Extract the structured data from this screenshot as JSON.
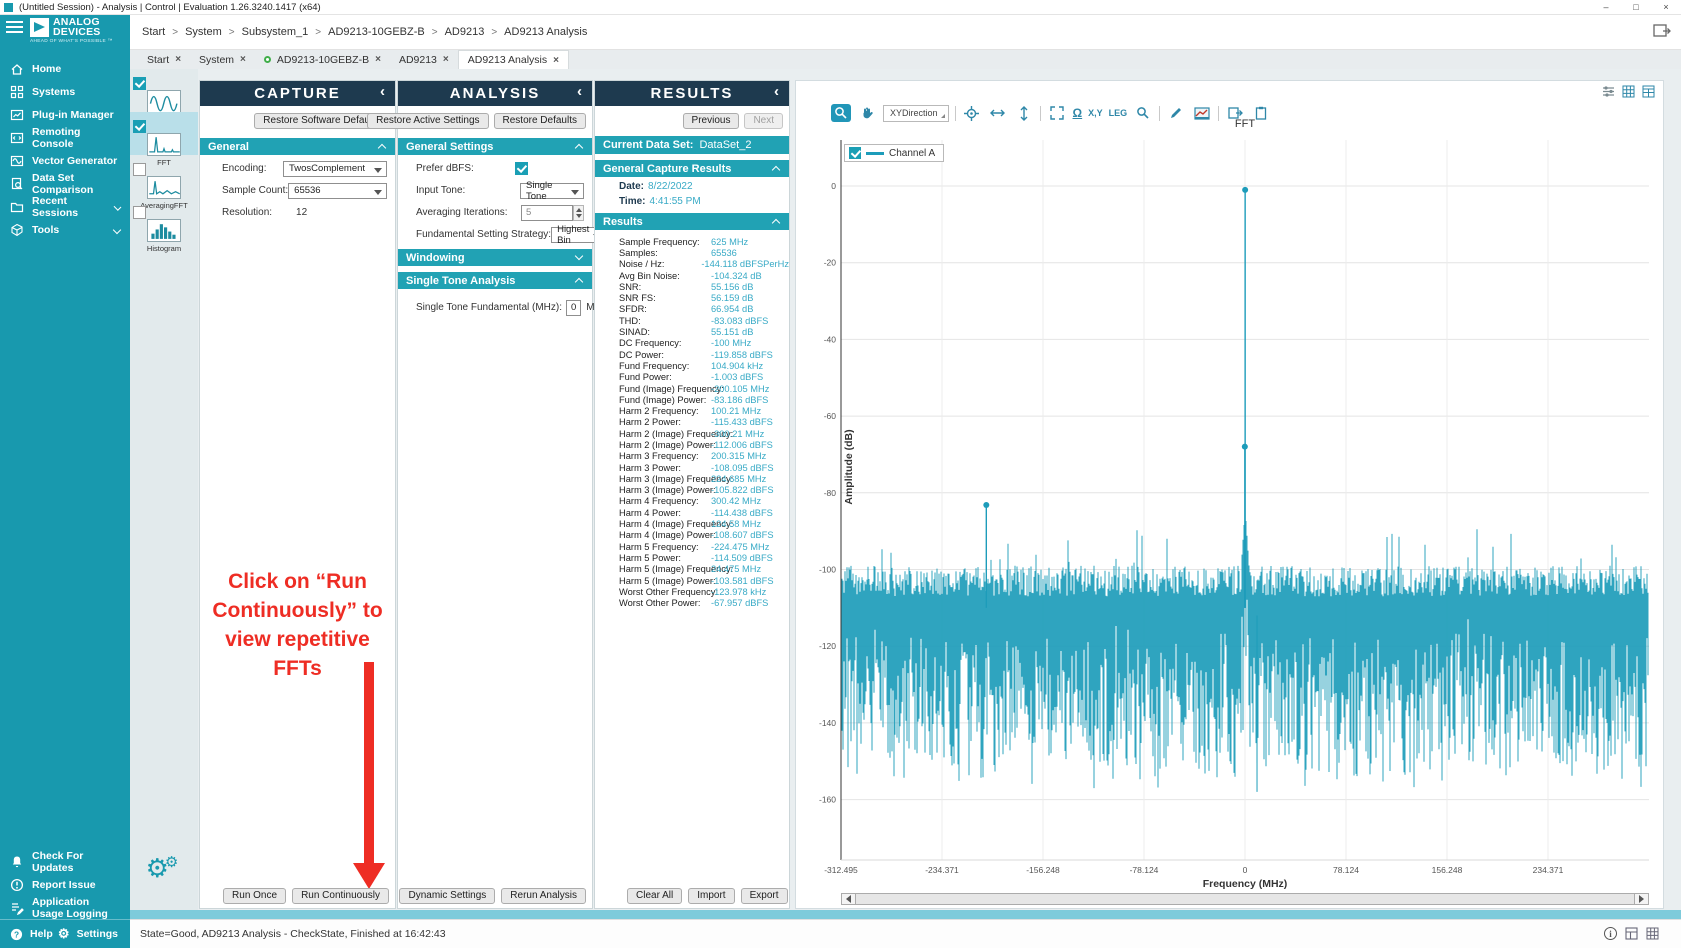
{
  "window_title": "(Untitled Session) - Analysis | Control | Evaluation 1.26.3240.1417  (x64)",
  "window_controls": {
    "minimize": "–",
    "maximize": "□",
    "close": "×"
  },
  "logo": {
    "name_top": "ANALOG",
    "name_bottom": "DEVICES",
    "tagline": "AHEAD OF WHAT'S POSSIBLE ™"
  },
  "breadcrumb": {
    "separator": ">",
    "items": [
      "Start",
      "System",
      "Subsystem_1",
      "AD9213-10GEBZ-B",
      "AD9213",
      "AD9213 Analysis"
    ]
  },
  "close_glyph": "×",
  "tabs": [
    {
      "label": "Start"
    },
    {
      "label": "System"
    },
    {
      "label": "AD9213-10GEBZ-B",
      "dot": true
    },
    {
      "label": "AD9213"
    },
    {
      "label": "AD9213 Analysis",
      "active": true
    }
  ],
  "sidebar": {
    "items": [
      {
        "label": "Home"
      },
      {
        "label": "Systems"
      },
      {
        "label": "Plug-in Manager"
      },
      {
        "label": "Remoting Console"
      },
      {
        "label": "Vector Generator"
      },
      {
        "label": "Data Set Comparison"
      },
      {
        "label": "Recent Sessions",
        "chevron": true
      },
      {
        "label": "Tools",
        "chevron": true
      }
    ],
    "footer": [
      {
        "label": "Check For Updates"
      },
      {
        "label": "Report Issue"
      },
      {
        "label": "Application Usage Logging"
      }
    ],
    "help": "Help",
    "settings": "Settings",
    "gear_glyph": "⚙"
  },
  "views": {
    "items": [
      {
        "label": "Waveform",
        "checked": true
      },
      {
        "label": "FFT",
        "checked": true,
        "selected": true
      },
      {
        "label": "AveragingFFT",
        "checked": false
      },
      {
        "label": "Histogram",
        "checked": false
      }
    ]
  },
  "capture": {
    "title": "CAPTURE",
    "collapse_glyph": "‹",
    "restore_defaults": "Restore Software Defaults",
    "general_section": "General",
    "fields": [
      {
        "label": "Encoding:",
        "value": "TwosComplement"
      },
      {
        "label": "Sample Count:",
        "value": "65536"
      },
      {
        "label": "Resolution:",
        "value": "12"
      }
    ],
    "run_once": "Run Once",
    "run_continuously": "Run Continuously"
  },
  "analysis": {
    "title": "ANALYSIS",
    "collapse_glyph": "‹",
    "restore_active": "Restore Active Settings",
    "restore_defaults": "Restore Defaults",
    "general_section": "General Settings",
    "fields": [
      {
        "label": "Prefer dBFS:",
        "checked": true
      },
      {
        "label": "Input Tone:",
        "value": "Single Tone"
      },
      {
        "label": "Averaging Iterations:",
        "value": "5"
      },
      {
        "label": "Fundamental Setting Strategy:",
        "value": "Highest Bin"
      }
    ],
    "windowing_section": "Windowing",
    "single_tone_section": "Single Tone Analysis",
    "stf_label": "Single Tone Fundamental (MHz):",
    "stf_value": "0",
    "stf_unit": "MHz",
    "dynamic_settings": "Dynamic Settings",
    "rerun": "Rerun Analysis"
  },
  "results": {
    "title": "RESULTS",
    "collapse_glyph": "‹",
    "previous": "Previous",
    "next": "Next",
    "current_data_set_label": "Current Data Set:",
    "current_data_set": "DataSet_2",
    "general_capture_section": "General Capture Results",
    "date_label": "Date:",
    "date": "8/22/2022",
    "time_label": "Time:",
    "time": "4:41:55 PM",
    "results_section": "Results",
    "rows": [
      [
        "Sample Frequency:",
        "625 MHz"
      ],
      [
        "Samples:",
        "65536"
      ],
      [
        "Noise / Hz:",
        "-144.118 dBFSPerHz"
      ],
      [
        "Avg Bin Noise:",
        "-104.324 dB"
      ],
      [
        "SNR:",
        "55.156 dB"
      ],
      [
        "SNR FS:",
        "56.159 dB"
      ],
      [
        "SFDR:",
        "66.954 dB"
      ],
      [
        "THD:",
        "-83.083 dBFS"
      ],
      [
        "SINAD:",
        "55.151 dB"
      ],
      [
        "DC Frequency:",
        "-100 MHz"
      ],
      [
        "DC Power:",
        "-119.858 dBFS"
      ],
      [
        "Fund Frequency:",
        "104.904 kHz"
      ],
      [
        "Fund Power:",
        "-1.003 dBFS"
      ],
      [
        "Fund (Image) Frequency:",
        "-200.105 MHz"
      ],
      [
        "Fund (Image) Power:",
        "-83.186 dBFS"
      ],
      [
        "Harm 2 Frequency:",
        "100.21 MHz"
      ],
      [
        "Harm 2 Power:",
        "-115.433 dBFS"
      ],
      [
        "Harm 2 (Image) Frequency:",
        "-300.21 MHz"
      ],
      [
        "Harm 2 (Image) Power:",
        "-112.006 dBFS"
      ],
      [
        "Harm 3 Frequency:",
        "200.315 MHz"
      ],
      [
        "Harm 3 Power:",
        "-108.095 dBFS"
      ],
      [
        "Harm 3 (Image) Frequency:",
        "224.685 MHz"
      ],
      [
        "Harm 3 (Image) Power:",
        "-105.822 dBFS"
      ],
      [
        "Harm 4 Frequency:",
        "300.42 MHz"
      ],
      [
        "Harm 4 Power:",
        "-114.438 dBFS"
      ],
      [
        "Harm 4 (Image) Frequency:",
        "124.58 MHz"
      ],
      [
        "Harm 4 (Image) Power:",
        "-108.607 dBFS"
      ],
      [
        "Harm 5 Frequency:",
        "-224.475 MHz"
      ],
      [
        "Harm 5 Power:",
        "-114.509 dBFS"
      ],
      [
        "Harm 5 (Image) Frequency:",
        "24.475 MHz"
      ],
      [
        "Harm 5 (Image) Power:",
        "-103.581 dBFS"
      ],
      [
        "Worst Other Frequency:",
        "-123.978 kHz"
      ],
      [
        "Worst Other Power:",
        "-67.957 dBFS"
      ]
    ],
    "clear_all": "Clear All",
    "import": "Import",
    "export": "Export"
  },
  "annotation": {
    "lines": [
      "Click on “Run",
      "Continuously” to",
      "view repetitive",
      "FFTs"
    ],
    "color": "#ee2d24"
  },
  "chart_toolbar": {
    "xydirection": "XYDirection",
    "omega": "Ω",
    "xy": "X,Y",
    "leg": "LEG"
  },
  "statusbar": {
    "text": "State=Good, AD9213 Analysis - CheckState, Finished at 16:42:43"
  },
  "colors": {
    "teal": "#1899ae",
    "navy": "#1e3a4f",
    "value_teal": "#38aac6",
    "series": "#1d9cba",
    "red": "#ee2d24"
  },
  "chart_data": {
    "type": "line",
    "title": "FFT",
    "xlabel": "Frequency (MHz)",
    "ylabel": "Amplitude (dB)",
    "xlim": [
      -312.5,
      312.5
    ],
    "ylim": [
      -160,
      0
    ],
    "xticks": [
      -312.495,
      -234.371,
      -156.248,
      -78.124,
      0,
      78.124,
      156.248,
      234.371
    ],
    "xtick_labels": [
      "-312.495",
      "-234.371",
      "-156.248",
      "-78.124",
      "0",
      "78.124",
      "156.248",
      "234.371"
    ],
    "yticks": [
      0,
      -20,
      -40,
      -60,
      -80,
      -100,
      -120,
      -140,
      -160
    ],
    "legend": [
      {
        "name": "Channel A",
        "checked": true
      }
    ],
    "series_color": "#1d9cba",
    "noise_top_db": -99,
    "peaks": [
      {
        "freq_mhz": 0.105,
        "power_dbfs": -1.003,
        "marker": true,
        "label": "fundamental"
      },
      {
        "freq_mhz": -0.124,
        "power_dbfs": -67.957,
        "marker": true,
        "label": "worst-other"
      },
      {
        "freq_mhz": -200.105,
        "power_dbfs": -83.186,
        "marker": true,
        "label": "fund-image"
      },
      {
        "freq_mhz": 100.21,
        "power_dbfs": -115.433
      },
      {
        "freq_mhz": -300.21,
        "power_dbfs": -112.006
      },
      {
        "freq_mhz": 200.315,
        "power_dbfs": -108.095
      },
      {
        "freq_mhz": 224.685,
        "power_dbfs": -105.822
      },
      {
        "freq_mhz": 300.42,
        "power_dbfs": -114.438
      },
      {
        "freq_mhz": 124.58,
        "power_dbfs": -108.607
      },
      {
        "freq_mhz": -224.475,
        "power_dbfs": -114.509
      },
      {
        "freq_mhz": 24.475,
        "power_dbfs": -103.581
      }
    ],
    "deep_null": {
      "freq_mhz": 9.3,
      "power_dbfs": -158
    }
  }
}
